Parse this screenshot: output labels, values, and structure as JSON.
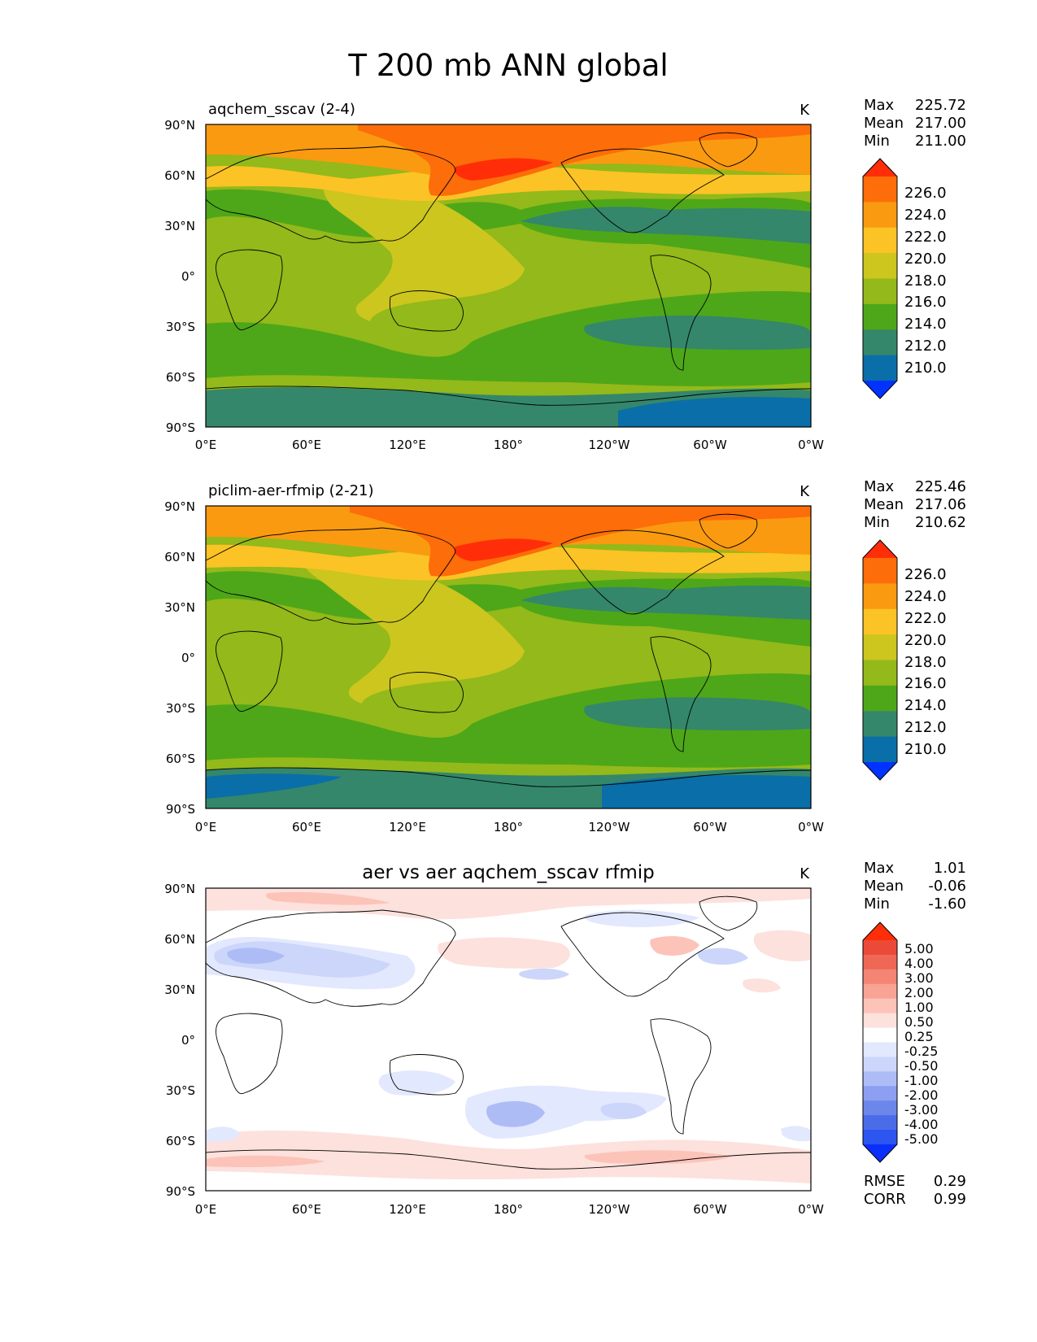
{
  "figure": {
    "title": "T 200 mb ANN global"
  },
  "axis_labels": {
    "lat": [
      "90°N",
      "60°N",
      "30°N",
      "0°",
      "30°S",
      "60°S",
      "90°S"
    ],
    "lon": [
      "0°E",
      "60°E",
      "120°E",
      "180°",
      "120°W",
      "60°W",
      "0°W"
    ]
  },
  "colors": {
    "abs_levels": [
      "#0033ff",
      "#0a6ea8",
      "#34876a",
      "#4ea718",
      "#93b91a",
      "#ccc61f",
      "#fbc325",
      "#fa9a10",
      "#fd6d09",
      "#ff2e08"
    ],
    "diff_levels": [
      "#0b2ffb",
      "#2d55f0",
      "#4a6ce8",
      "#6b87ea",
      "#8c9ff0",
      "#aebcf6",
      "#ccd6fa",
      "#e2e8fd",
      "#ffffff",
      "#fde1dc",
      "#fcc3b9",
      "#f9a395",
      "#f48575",
      "#ef6856",
      "#eb4a39",
      "#ff2e08"
    ],
    "coast": "#000000"
  },
  "panels": [
    {
      "id": "test",
      "title": "aqchem_sscav (2-4)",
      "units": "K",
      "stats": {
        "max_label": "Max",
        "max": "225.72",
        "mean_label": "Mean",
        "mean": "217.00",
        "min_label": "Min",
        "min": "211.00"
      },
      "colorbar_ticks": [
        "226.0",
        "224.0",
        "222.0",
        "220.0",
        "218.0",
        "216.0",
        "214.0",
        "212.0",
        "210.0"
      ]
    },
    {
      "id": "reference",
      "title": "piclim-aer-rfmip (2-21)",
      "units": "K",
      "stats": {
        "max_label": "Max",
        "max": "225.46",
        "mean_label": "Mean",
        "mean": "217.06",
        "min_label": "Min",
        "min": "210.62"
      },
      "colorbar_ticks": [
        "226.0",
        "224.0",
        "222.0",
        "220.0",
        "218.0",
        "216.0",
        "214.0",
        "212.0",
        "210.0"
      ]
    },
    {
      "id": "difference",
      "title": "aer vs aer aqchem_sscav rfmip",
      "units": "K",
      "stats": {
        "max_label": "Max",
        "max": "1.01",
        "mean_label": "Mean",
        "mean": "-0.06",
        "min_label": "Min",
        "min": "-1.60"
      },
      "colorbar_ticks": [
        "5.00",
        "4.00",
        "3.00",
        "2.00",
        "1.00",
        "0.50",
        "0.25",
        "-0.25",
        "-0.50",
        "-1.00",
        "-2.00",
        "-3.00",
        "-4.00",
        "-5.00"
      ],
      "metrics": {
        "rmse_label": "RMSE",
        "rmse": "0.29",
        "corr_label": "CORR",
        "corr": "0.99"
      }
    }
  ]
}
